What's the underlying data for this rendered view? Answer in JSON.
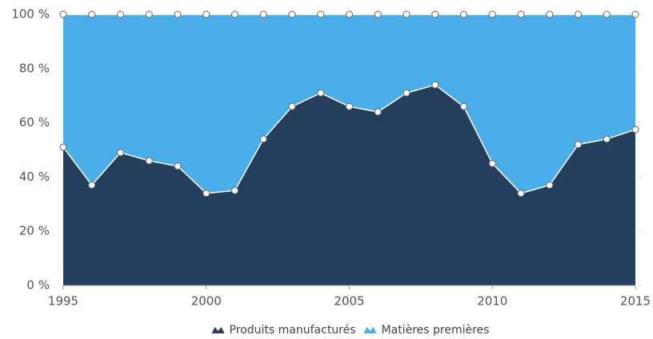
{
  "chart_data": {
    "type": "stacked_area",
    "x": [
      1995,
      1996,
      1997,
      1998,
      1999,
      2000,
      2001,
      2002,
      2003,
      2004,
      2005,
      2006,
      2007,
      2008,
      2009,
      2010,
      2011,
      2012,
      2013,
      2014,
      2015
    ],
    "series": [
      {
        "name": "Produits manufacturés",
        "color": "#243f5e",
        "values": [
          51,
          37,
          49,
          46,
          44,
          34,
          35,
          54,
          66,
          71,
          66,
          64,
          71,
          74,
          66,
          45,
          34,
          37,
          52,
          54,
          57.5
        ]
      },
      {
        "name": "Matières premières",
        "color": "#4aaeea",
        "values": [
          49,
          63,
          51,
          54,
          56,
          66,
          65,
          46,
          34,
          29,
          34,
          36,
          29,
          26,
          34,
          55,
          66,
          63,
          48,
          46,
          42.5
        ]
      }
    ],
    "xlim": [
      1995,
      2015
    ],
    "xticks": [
      1995,
      2000,
      2005,
      2010,
      2015
    ],
    "ylim": [
      0,
      100
    ],
    "yticks": [
      {
        "value": 0,
        "label": "0 %"
      },
      {
        "value": 20,
        "label": "20 %"
      },
      {
        "value": 40,
        "label": "40 %"
      },
      {
        "value": 60,
        "label": "60 %"
      },
      {
        "value": 80,
        "label": "80 %"
      },
      {
        "value": 100,
        "label": "100 %"
      }
    ],
    "legend": "bottom"
  }
}
